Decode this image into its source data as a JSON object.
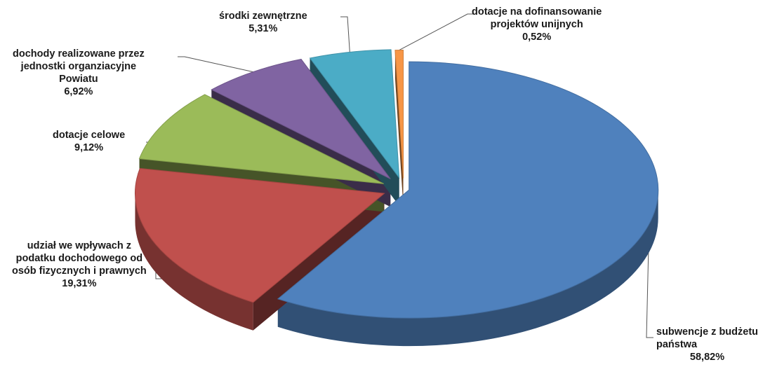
{
  "chart_data": {
    "type": "pie",
    "title": "",
    "slices": [
      {
        "label_lines": [
          "subwencje z budżetu",
          "państwa"
        ],
        "value": 58.82,
        "value_label": "58,82%",
        "color": "#4F81BD"
      },
      {
        "label_lines": [
          "udział we wpływach z",
          "podatku dochodowego od",
          "osób fizycznych i prawnych"
        ],
        "value": 19.31,
        "value_label": "19,31%",
        "color": "#C0504D"
      },
      {
        "label_lines": [
          "dotacje celowe"
        ],
        "value": 9.12,
        "value_label": "9,12%",
        "color": "#9BBB59"
      },
      {
        "label_lines": [
          "dochody realizowane przez",
          "jednostki organziacyjne",
          "Powiatu"
        ],
        "value": 6.92,
        "value_label": "6,92%",
        "color": "#8064A2"
      },
      {
        "label_lines": [
          "środki zewnętrzne"
        ],
        "value": 5.31,
        "value_label": "5,31%",
        "color": "#4BACC6"
      },
      {
        "label_lines": [
          "dotacje na dofinansowanie",
          "projektów unijnych"
        ],
        "value": 0.52,
        "value_label": "0,52%",
        "color": "#F79646"
      }
    ],
    "legend": "none"
  }
}
